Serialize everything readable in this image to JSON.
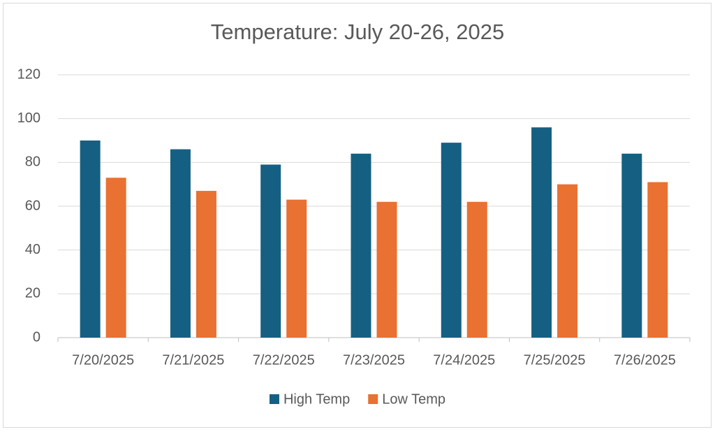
{
  "chart_data": {
    "type": "bar",
    "title": "Temperature:  July 20-26, 2025",
    "categories": [
      "7/20/2025",
      "7/21/2025",
      "7/22/2025",
      "7/23/2025",
      "7/24/2025",
      "7/25/2025",
      "7/26/2025"
    ],
    "series": [
      {
        "name": "High Temp",
        "color": "#156082",
        "values": [
          90,
          86,
          79,
          84,
          89,
          96,
          84
        ]
      },
      {
        "name": "Low Temp",
        "color": "#e97132",
        "values": [
          73,
          67,
          63,
          62,
          62,
          70,
          71
        ]
      }
    ],
    "ylim": [
      0,
      120
    ],
    "yticks": [
      0,
      20,
      40,
      60,
      80,
      100,
      120
    ],
    "grid": true,
    "legend": "bottom"
  }
}
